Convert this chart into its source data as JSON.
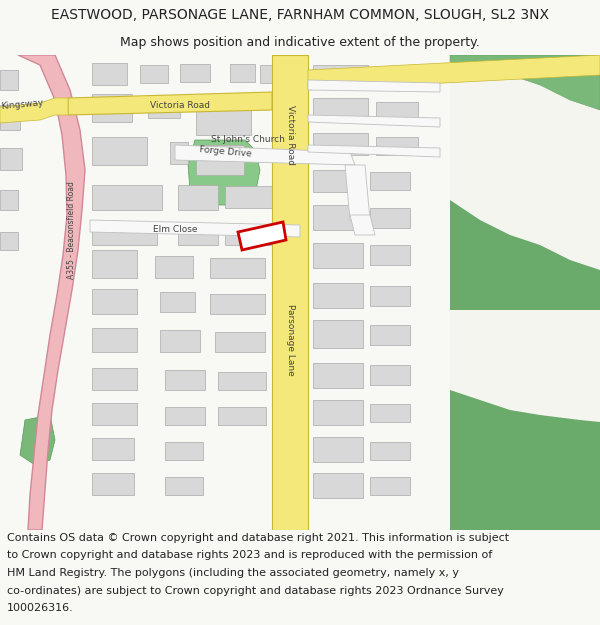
{
  "title_line1": "EASTWOOD, PARSONAGE LANE, FARNHAM COMMON, SLOUGH, SL2 3NX",
  "title_line2": "Map shows position and indicative extent of the property.",
  "footer_lines": [
    "Contains OS data © Crown copyright and database right 2021. This information is subject",
    "to Crown copyright and database rights 2023 and is reproduced with the permission of",
    "HM Land Registry. The polygons (including the associated geometry, namely x, y",
    "co-ordinates) are subject to Crown copyright and database rights 2023 Ordnance Survey",
    "100026316."
  ],
  "bg_color": "#f8f8f5",
  "map_bg": "#f5f5f0",
  "yellow_road": "#f5e87a",
  "yellow_road_edge": "#c8b830",
  "pink_road": "#f0b8bc",
  "pink_road_edge": "#d08898",
  "building_fc": "#d8d8d8",
  "building_ec": "#aaaaaa",
  "green1": "#6aaa6a",
  "green2": "#7ab87a",
  "green3": "#5a9a5a",
  "church_green": "#88c888",
  "red_plot": "#cc0000",
  "text_dark": "#222222",
  "text_road": "#444444",
  "title_fs": 10,
  "subtitle_fs": 9,
  "footer_fs": 8,
  "map_label_fs": 6.5
}
